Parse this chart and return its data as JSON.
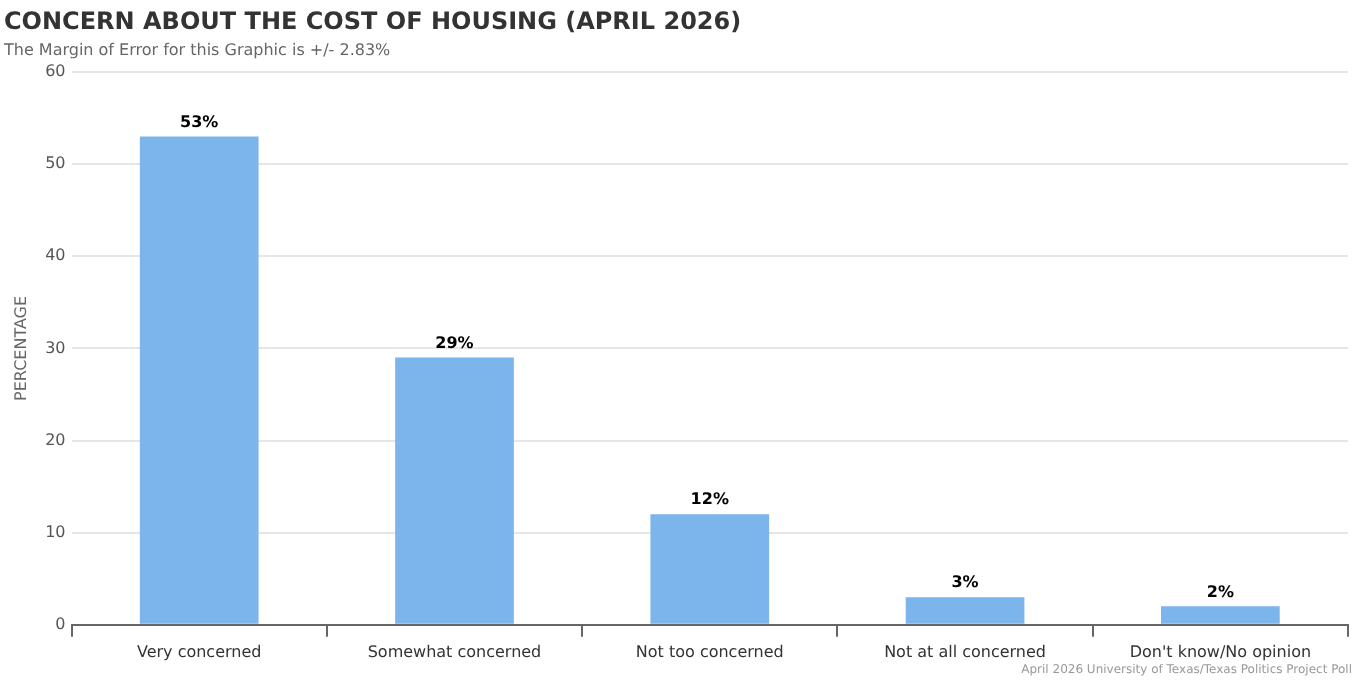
{
  "chart_data": {
    "type": "bar",
    "title": "CONCERN ABOUT THE COST OF HOUSING (APRIL 2026)",
    "subtitle": "The Margin of Error for this Graphic is +/- 2.83%",
    "ylabel": "PERCENTAGE",
    "categories": [
      "Very concerned",
      "Somewhat concerned",
      "Not too concerned",
      "Not at all concerned",
      "Don't know/No opinion"
    ],
    "values": [
      53,
      29,
      12,
      3,
      2
    ],
    "value_labels": [
      "53%",
      "29%",
      "12%",
      "3%",
      "2%"
    ],
    "color": "#7cb5ec",
    "ylim": [
      0,
      60
    ],
    "yticks": [
      0,
      10,
      20,
      30,
      40,
      50,
      60
    ],
    "grid": "y",
    "legend": false,
    "annotations": [
      "April 2026 University of Texas/Texas Politics Project Poll"
    ]
  }
}
